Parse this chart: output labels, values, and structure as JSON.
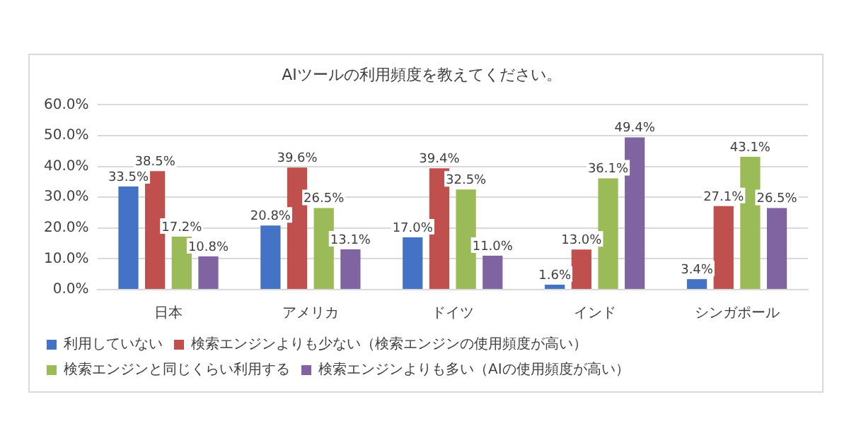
{
  "chart_data": {
    "type": "bar",
    "title": "AIツールの利用頻度を教えてください。",
    "categories": [
      "日本",
      "アメリカ",
      "ドイツ",
      "インド",
      "シンガポール"
    ],
    "series": [
      {
        "name": "利用していない",
        "color": "#4472c4",
        "values": [
          33.5,
          20.8,
          17.0,
          1.6,
          3.4
        ],
        "value_labels": [
          "33.5%",
          "20.8%",
          "17.0%",
          "1.6%",
          "3.4%"
        ]
      },
      {
        "name": "検索エンジンよりも少ない（検索エンジンの使用頻度が高い）",
        "color": "#c0504d",
        "values": [
          38.5,
          39.6,
          39.4,
          13.0,
          27.1
        ],
        "value_labels": [
          "38.5%",
          "39.6%",
          "39.4%",
          "13.0%",
          "27.1%"
        ]
      },
      {
        "name": "検索エンジンと同じくらい利用する",
        "color": "#9bbb59",
        "values": [
          17.2,
          26.5,
          32.5,
          36.1,
          43.1
        ],
        "value_labels": [
          "17.2%",
          "26.5%",
          "32.5%",
          "36.1%",
          "43.1%"
        ]
      },
      {
        "name": "検索エンジンよりも多い（AIの使用頻度が高い）",
        "color": "#8064a2",
        "values": [
          10.8,
          13.1,
          11.0,
          49.4,
          26.5
        ],
        "value_labels": [
          "10.8%",
          "13.1%",
          "11.0%",
          "49.4%",
          "26.5%"
        ]
      }
    ],
    "ylim": [
      0,
      60
    ],
    "yticks": [
      {
        "value": 0,
        "label": "0.0%"
      },
      {
        "value": 10,
        "label": "10.0%"
      },
      {
        "value": 20,
        "label": "20.0%"
      },
      {
        "value": 30,
        "label": "30.0%"
      },
      {
        "value": 40,
        "label": "40.0%"
      },
      {
        "value": 50,
        "label": "50.0%"
      },
      {
        "value": 60,
        "label": "60.0%"
      }
    ],
    "grid": "y",
    "legend": "bottom"
  }
}
